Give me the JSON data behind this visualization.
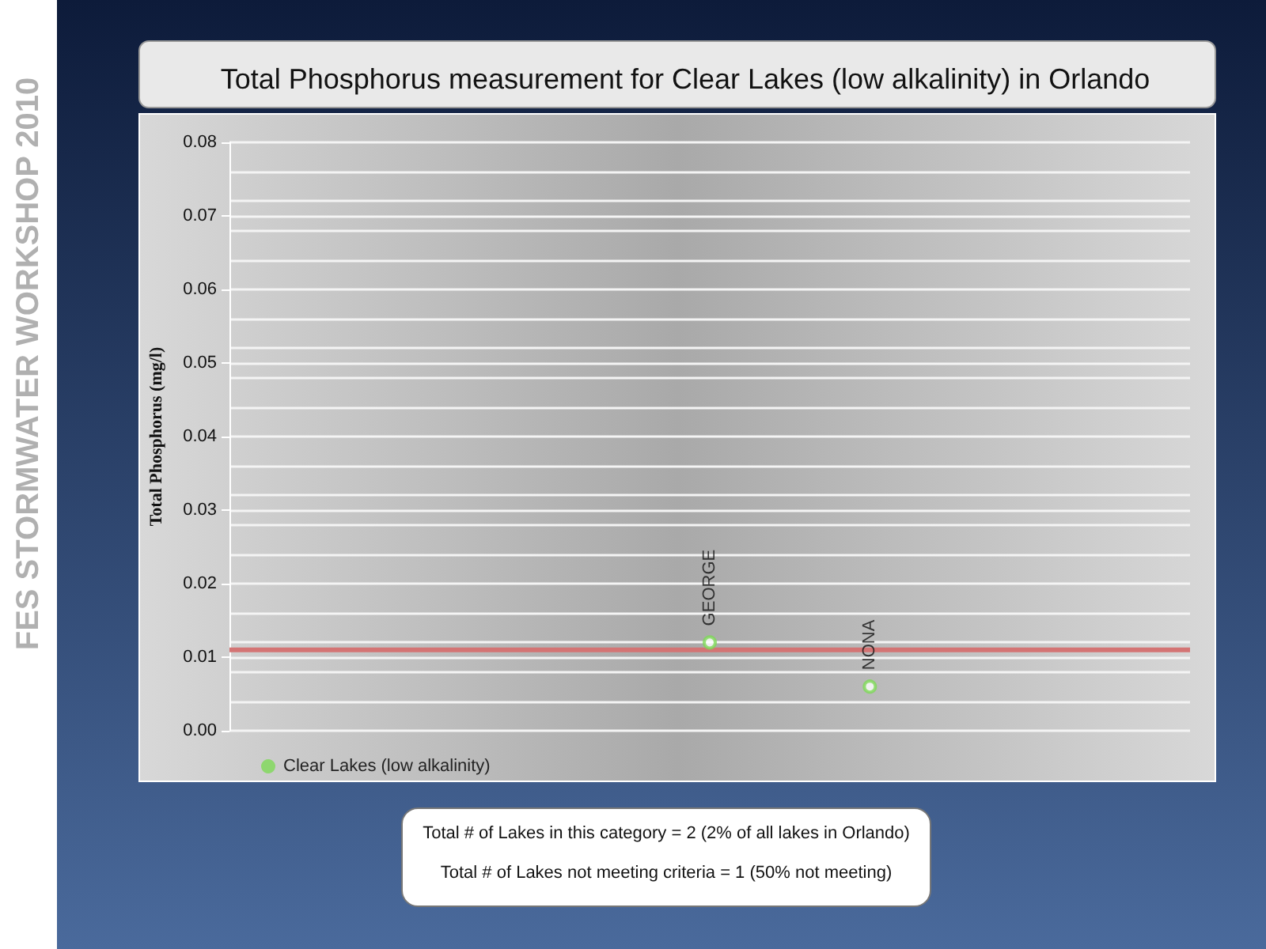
{
  "chart_data": {
    "type": "scatter",
    "title": "Total Phosphorus measurement for Clear Lakes (low alkalinity) in Orlando",
    "ylabel": "Total Phosphorus (mg/l)",
    "categories": [
      null,
      null,
      null,
      null,
      null,
      null,
      null,
      null,
      null,
      null,
      null,
      null,
      null
    ],
    "series": [
      {
        "name": "Clear Lakes (low alkalinity)",
        "color": "#7ed957",
        "values": [
          null,
          null,
          null,
          null,
          null,
          null,
          0.012,
          null,
          0.006,
          null,
          null,
          null,
          null
        ]
      }
    ],
    "ylim": [
      0,
      0.08
    ],
    "yticks": [
      {
        "value": 0,
        "label": "0.00"
      },
      {
        "value": 0.01,
        "label": "0.01"
      },
      {
        "value": 0.02,
        "label": "0.02"
      },
      {
        "value": 0.03,
        "label": "0.03"
      },
      {
        "value": 0.04,
        "label": "0.04"
      },
      {
        "value": 0.05,
        "label": "0.05"
      },
      {
        "value": 0.06,
        "label": "0.06"
      },
      {
        "value": 0.07,
        "label": "0.07"
      },
      {
        "value": 0.08,
        "label": "0.08"
      }
    ],
    "ref_lines": [
      {
        "axis": "y",
        "value": 0.011,
        "color": "#d47474"
      }
    ],
    "annotations": [
      {
        "text": "GEORGE",
        "y": 0.012
      },
      {
        "text": "NONA",
        "y": 0.006
      },
      "Total # of Lakes in this category = 2 (2% of all lakes in Orlando)",
      "Total # of Lakes not meeting criteria = 1 (50% not meeting)",
      "FES STORMWATER WORKSHOP 2010"
    ],
    "grid": "y",
    "legend": "bottom left",
    "marker": "circle",
    "tick_labels": "y"
  }
}
